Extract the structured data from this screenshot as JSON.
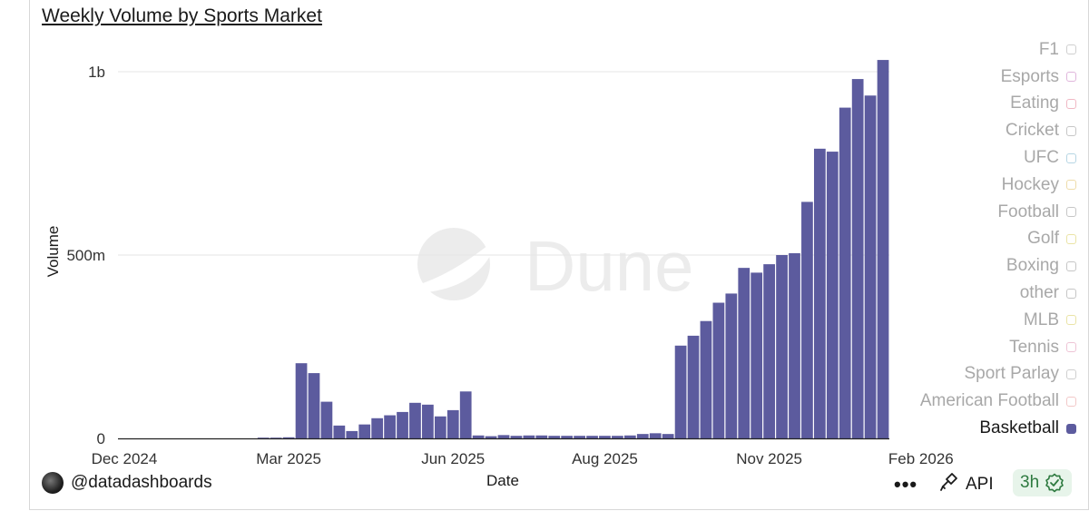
{
  "chart_data": {
    "type": "bar",
    "title": "Weekly Volume by Sports Market",
    "xlabel": "Date",
    "ylabel": "Volume",
    "ylim": [
      0,
      1050000000
    ],
    "y_ticks": [
      {
        "value": 0,
        "label": "0"
      },
      {
        "value": 500000000,
        "label": "500m"
      },
      {
        "value": 1000000000,
        "label": "1b"
      }
    ],
    "x_ticks": [
      {
        "index": 0,
        "label": "Dec 2024"
      },
      {
        "index": 13,
        "label": "Mar 2025"
      },
      {
        "index": 26,
        "label": "Jun 2025"
      },
      {
        "index": 38,
        "label": "Aug 2025"
      },
      {
        "index": 51,
        "label": "Nov 2025"
      },
      {
        "index": 63,
        "label": "Feb 2026"
      }
    ],
    "grid": true,
    "legend_position": "right",
    "watermark": "Dune",
    "series": [
      {
        "name": "Basketball",
        "color": "#5c5b9e",
        "values": [
          0,
          0,
          0,
          0,
          0,
          0,
          0,
          0,
          0,
          0,
          0,
          2000000,
          2000000,
          3000000,
          205000000,
          178000000,
          100000000,
          35000000,
          20000000,
          38000000,
          55000000,
          63000000,
          72000000,
          97000000,
          92000000,
          60000000,
          77000000,
          128000000,
          8000000,
          6000000,
          9000000,
          7000000,
          8000000,
          8000000,
          7000000,
          7000000,
          7000000,
          7000000,
          7000000,
          7000000,
          8000000,
          12000000,
          14000000,
          12000000,
          253000000,
          280000000,
          320000000,
          370000000,
          395000000,
          465000000,
          452000000,
          475000000,
          500000000,
          505000000,
          645000000,
          790000000,
          782000000,
          902000000,
          980000000,
          935000000,
          1032000000
        ]
      }
    ]
  },
  "legend": [
    {
      "label": "F1",
      "color": "#cfcfcf",
      "active": false
    },
    {
      "label": "Esports",
      "color": "#e0b6dc",
      "active": false
    },
    {
      "label": "Eating",
      "color": "#f0b8c4",
      "active": false
    },
    {
      "label": "Cricket",
      "color": "#c6c6c6",
      "active": false
    },
    {
      "label": "UFC",
      "color": "#b6d6e4",
      "active": false
    },
    {
      "label": "Hockey",
      "color": "#eedcaa",
      "active": false
    },
    {
      "label": "Football",
      "color": "#c6c6c6",
      "active": false
    },
    {
      "label": "Golf",
      "color": "#eae4a6",
      "active": false
    },
    {
      "label": "Boxing",
      "color": "#c6c6c6",
      "active": false
    },
    {
      "label": "other",
      "color": "#c6c6c6",
      "active": false
    },
    {
      "label": "MLB",
      "color": "#eae4a6",
      "active": false
    },
    {
      "label": "Tennis",
      "color": "#eec4d6",
      "active": false
    },
    {
      "label": "Sport Parlay",
      "color": "#cfcfcf",
      "active": false
    },
    {
      "label": "American Football",
      "color": "#f2c8c8",
      "active": false
    },
    {
      "label": "Basketball",
      "color": "#5c5b9e",
      "active": true
    }
  ],
  "footer": {
    "user": "@datadashboards",
    "more": "•••",
    "api": "API",
    "refresh": "3h"
  }
}
